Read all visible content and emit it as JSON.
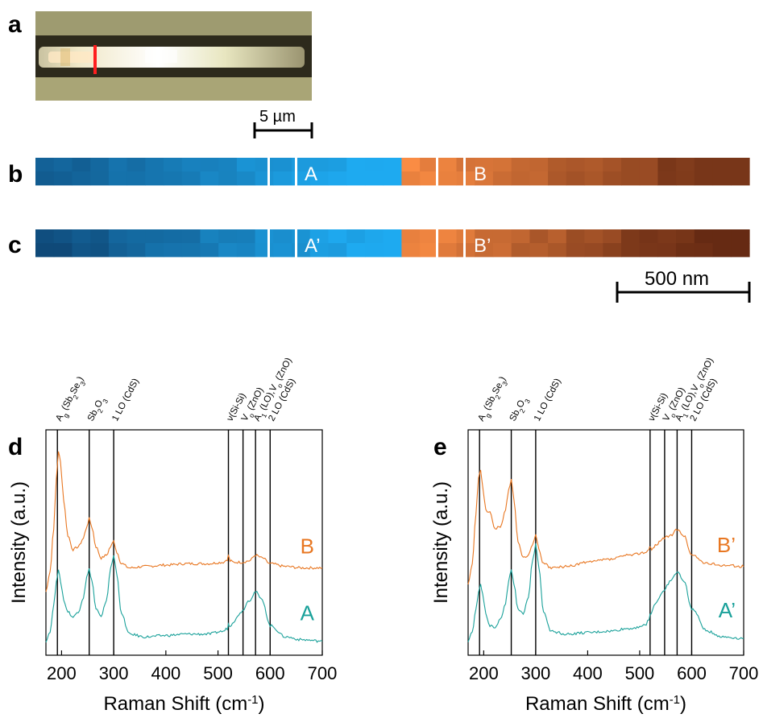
{
  "panel_labels": {
    "a": "a",
    "b": "b",
    "c": "c",
    "d": "d",
    "e": "e"
  },
  "scalebar_micro": "5 µm",
  "scalebar_nano": "500 nm",
  "map_b": {
    "left_label": "A",
    "right_label": "B"
  },
  "map_c": {
    "left_label": "A’",
    "right_label": "B’"
  },
  "colors": {
    "blue": "#1e9bd8",
    "orange": "#e97a2f",
    "spectrum_top": "#e87722",
    "spectrum_bottom": "#1aa19a"
  },
  "peaks": [
    {
      "x": 192,
      "label_main": "A",
      "label_sub": "g",
      "label_rest": " (Sb",
      "label_sub2": "2",
      "label_rest2": "Se",
      "label_sub3": "3",
      "label_end": ")"
    },
    {
      "x": 253,
      "label_main": "Sb",
      "label_sub": "2",
      "label_rest": "O",
      "label_sub2": "3",
      "label_rest2": "",
      "label_sub3": "",
      "label_end": ""
    },
    {
      "x": 300,
      "label_main": "1 LO (CdS)",
      "label_sub": "",
      "label_rest": "",
      "label_sub2": "",
      "label_rest2": "",
      "label_sub3": "",
      "label_end": ""
    },
    {
      "x": 520,
      "label_main": "ν(Si-Si)",
      "label_sub": "",
      "label_rest": "",
      "label_sub2": "",
      "label_rest2": "",
      "label_sub3": "",
      "label_end": ""
    },
    {
      "x": 548,
      "label_main": "V",
      "label_sub": "o",
      "label_rest": " (ZnO)",
      "label_sub2": "",
      "label_rest2": "",
      "label_sub3": "",
      "label_end": ""
    },
    {
      "x": 572,
      "label_main": "A",
      "label_sub": "1",
      "label_rest": " (LO),V",
      "label_sub2": "o",
      "label_rest2": " (ZnO)",
      "label_sub3": "",
      "label_end": ""
    },
    {
      "x": 600,
      "label_main": "2 LO (CdS)",
      "label_sub": "",
      "label_rest": "",
      "label_sub2": "",
      "label_rest2": "",
      "label_sub3": "",
      "label_end": ""
    }
  ],
  "chart_data": [
    {
      "type": "line",
      "panel": "d",
      "xlabel": "Raman Shift (cm-1)",
      "ylabel": "Intensity (a.u.)",
      "xlim": [
        170,
        700
      ],
      "xticks": [
        200,
        300,
        400,
        500,
        600,
        700
      ],
      "series": [
        {
          "name": "B",
          "color": "#e87722",
          "x": [
            170,
            178,
            185,
            190,
            194,
            198,
            204,
            212,
            222,
            232,
            242,
            248,
            253,
            258,
            266,
            276,
            286,
            294,
            300,
            306,
            315,
            330,
            360,
            400,
            440,
            480,
            510,
            518,
            520,
            523,
            530,
            545,
            560,
            572,
            585,
            600,
            630,
            660,
            700
          ],
          "y": [
            0.4,
            0.55,
            0.85,
            1.2,
            1.4,
            1.32,
            1.05,
            0.8,
            0.7,
            0.72,
            0.78,
            0.86,
            0.92,
            0.86,
            0.72,
            0.64,
            0.66,
            0.72,
            0.76,
            0.68,
            0.6,
            0.57,
            0.58,
            0.59,
            0.6,
            0.6,
            0.61,
            0.63,
            0.66,
            0.62,
            0.61,
            0.61,
            0.62,
            0.66,
            0.64,
            0.6,
            0.58,
            0.57,
            0.57
          ]
        },
        {
          "name": "A",
          "color": "#1aa19a",
          "x": [
            170,
            178,
            185,
            190,
            194,
            198,
            204,
            212,
            222,
            232,
            242,
            248,
            253,
            258,
            266,
            276,
            286,
            294,
            300,
            306,
            315,
            330,
            360,
            400,
            440,
            480,
            510,
            518,
            520,
            523,
            530,
            545,
            560,
            572,
            585,
            600,
            630,
            660,
            700
          ],
          "y": [
            0.05,
            0.12,
            0.3,
            0.48,
            0.55,
            0.48,
            0.34,
            0.26,
            0.22,
            0.26,
            0.36,
            0.5,
            0.56,
            0.48,
            0.28,
            0.22,
            0.34,
            0.56,
            0.66,
            0.52,
            0.24,
            0.1,
            0.08,
            0.09,
            0.1,
            0.1,
            0.12,
            0.14,
            0.17,
            0.16,
            0.19,
            0.26,
            0.34,
            0.4,
            0.34,
            0.16,
            0.08,
            0.06,
            0.05
          ]
        }
      ]
    },
    {
      "type": "line",
      "panel": "e",
      "xlabel": "Raman Shift (cm-1)",
      "ylabel": "Intensity (a.u.)",
      "xlim": [
        170,
        700
      ],
      "xticks": [
        200,
        300,
        400,
        500,
        600,
        700
      ],
      "series": [
        {
          "name": "B’",
          "color": "#e87722",
          "x": [
            170,
            178,
            185,
            190,
            194,
            198,
            204,
            212,
            222,
            232,
            242,
            248,
            253,
            258,
            266,
            276,
            286,
            294,
            300,
            306,
            315,
            330,
            360,
            400,
            440,
            480,
            510,
            518,
            520,
            523,
            530,
            545,
            560,
            572,
            585,
            600,
            630,
            660,
            700
          ],
          "y": [
            0.45,
            0.6,
            0.95,
            1.2,
            1.27,
            1.15,
            0.98,
            0.96,
            0.85,
            0.86,
            0.98,
            1.12,
            1.2,
            1.05,
            0.76,
            0.64,
            0.66,
            0.74,
            0.8,
            0.7,
            0.6,
            0.57,
            0.58,
            0.61,
            0.63,
            0.66,
            0.68,
            0.7,
            0.72,
            0.7,
            0.73,
            0.78,
            0.8,
            0.84,
            0.8,
            0.66,
            0.6,
            0.59,
            0.58
          ]
        },
        {
          "name": "A’",
          "color": "#1aa19a",
          "x": [
            170,
            178,
            185,
            190,
            194,
            198,
            204,
            212,
            222,
            232,
            242,
            248,
            253,
            258,
            266,
            276,
            286,
            294,
            300,
            306,
            315,
            330,
            360,
            400,
            440,
            480,
            510,
            518,
            520,
            523,
            530,
            545,
            560,
            572,
            585,
            600,
            630,
            660,
            700
          ],
          "y": [
            0.05,
            0.12,
            0.28,
            0.4,
            0.45,
            0.38,
            0.24,
            0.16,
            0.14,
            0.2,
            0.32,
            0.48,
            0.56,
            0.46,
            0.28,
            0.24,
            0.36,
            0.62,
            0.74,
            0.58,
            0.26,
            0.12,
            0.1,
            0.11,
            0.12,
            0.14,
            0.16,
            0.2,
            0.24,
            0.26,
            0.32,
            0.4,
            0.48,
            0.54,
            0.48,
            0.28,
            0.12,
            0.08,
            0.07
          ]
        }
      ]
    }
  ]
}
